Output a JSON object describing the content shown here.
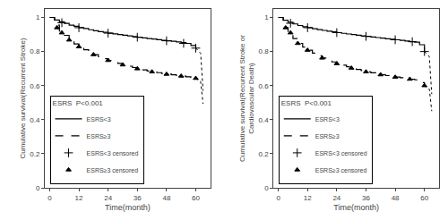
{
  "chart_data": [
    {
      "type": "line",
      "x_label": "Time(month)",
      "y_label": "Cumulative survival(Recurrent Stroke)",
      "legend_title": "ESRS  P<0.001",
      "legend": "lower left",
      "grid": false,
      "xlim": [
        -2,
        66
      ],
      "ylim": [
        0.0,
        1.05
      ],
      "xticks": [
        0,
        12,
        24,
        36,
        48,
        60
      ],
      "yticks": [
        0.0,
        0.2,
        0.4,
        0.6,
        0.8,
        1.0
      ],
      "series": [
        {
          "name": "ESRS<3",
          "type": "step",
          "color": "#000000",
          "line_style": "solid",
          "x": [
            0,
            2,
            4,
            6,
            8,
            10,
            12,
            14,
            16,
            18,
            20,
            22,
            24,
            26,
            28,
            30,
            32,
            34,
            36,
            38,
            40,
            42,
            44,
            46,
            48,
            50,
            52,
            54,
            56,
            58,
            60
          ],
          "values": [
            1.0,
            0.985,
            0.975,
            0.965,
            0.955,
            0.948,
            0.94,
            0.935,
            0.928,
            0.922,
            0.917,
            0.913,
            0.908,
            0.904,
            0.9,
            0.896,
            0.892,
            0.888,
            0.884,
            0.88,
            0.876,
            0.873,
            0.87,
            0.866,
            0.863,
            0.86,
            0.856,
            0.852,
            0.848,
            0.835,
            0.82
          ]
        },
        {
          "name": "ESRS≥3",
          "type": "step",
          "color": "#000000",
          "line_style": "dashed",
          "x": [
            0,
            2,
            4,
            6,
            8,
            10,
            12,
            14,
            16,
            18,
            20,
            22,
            24,
            26,
            28,
            30,
            32,
            34,
            36,
            38,
            40,
            42,
            44,
            46,
            48,
            50,
            52,
            54,
            56,
            58,
            60
          ],
          "values": [
            1.0,
            0.955,
            0.92,
            0.895,
            0.868,
            0.845,
            0.828,
            0.81,
            0.796,
            0.782,
            0.77,
            0.758,
            0.748,
            0.738,
            0.73,
            0.722,
            0.714,
            0.706,
            0.699,
            0.692,
            0.686,
            0.681,
            0.676,
            0.671,
            0.667,
            0.663,
            0.659,
            0.656,
            0.652,
            0.648,
            0.643
          ]
        },
        {
          "type": "line",
          "color": "#000000",
          "line_style": "dotted",
          "x": [
            60,
            62,
            63
          ],
          "values": [
            0.82,
            0.79,
            0.57
          ]
        },
        {
          "type": "line",
          "color": "#000000",
          "line_style": "dotted",
          "x": [
            60,
            62,
            63
          ],
          "values": [
            0.643,
            0.623,
            0.493
          ]
        },
        {
          "name": "ESRS<3 censored",
          "type": "scatter",
          "color": "#000000",
          "marker": "plus",
          "x": [
            5,
            12,
            24,
            36,
            48,
            55,
            60
          ],
          "values": [
            0.969,
            0.94,
            0.908,
            0.884,
            0.863,
            0.848,
            0.82
          ]
        },
        {
          "name": "ESRS≥3 censored",
          "type": "scatter",
          "color": "#000000",
          "marker": "triangle",
          "x": [
            3,
            5,
            8,
            12,
            18,
            24,
            30,
            36,
            42,
            48,
            54,
            60
          ],
          "values": [
            0.94,
            0.91,
            0.868,
            0.828,
            0.782,
            0.748,
            0.722,
            0.699,
            0.681,
            0.667,
            0.656,
            0.643
          ]
        }
      ]
    },
    {
      "type": "line",
      "x_label": "Time(month)",
      "y_label": "Cumulative survival(Recurrent Stroke or\nCardiovascular Death)",
      "legend_title": "ESRS  P<0.001",
      "legend": "lower left",
      "grid": false,
      "xlim": [
        -2,
        66
      ],
      "ylim": [
        0.0,
        1.05
      ],
      "xticks": [
        0,
        12,
        24,
        36,
        48,
        60
      ],
      "yticks": [
        0.0,
        0.2,
        0.4,
        0.6,
        0.8,
        1.0
      ],
      "series": [
        {
          "name": "ESRS<3",
          "type": "step",
          "color": "#000000",
          "line_style": "solid",
          "x": [
            0,
            2,
            4,
            6,
            8,
            10,
            12,
            14,
            16,
            18,
            20,
            22,
            24,
            26,
            28,
            30,
            32,
            34,
            36,
            38,
            40,
            42,
            44,
            46,
            48,
            50,
            52,
            54,
            56,
            58,
            60
          ],
          "values": [
            1.0,
            0.984,
            0.972,
            0.962,
            0.953,
            0.946,
            0.94,
            0.934,
            0.929,
            0.924,
            0.919,
            0.915,
            0.911,
            0.907,
            0.903,
            0.9,
            0.896,
            0.892,
            0.889,
            0.885,
            0.882,
            0.879,
            0.875,
            0.872,
            0.869,
            0.866,
            0.862,
            0.858,
            0.855,
            0.84,
            0.8
          ]
        },
        {
          "name": "ESRS≥3",
          "type": "step",
          "color": "#000000",
          "line_style": "dashed",
          "x": [
            0,
            2,
            4,
            6,
            8,
            10,
            12,
            14,
            16,
            18,
            20,
            22,
            24,
            26,
            28,
            30,
            32,
            34,
            36,
            38,
            40,
            42,
            44,
            46,
            48,
            50,
            52,
            54,
            56,
            58,
            60
          ],
          "values": [
            1.0,
            0.94,
            0.905,
            0.876,
            0.848,
            0.826,
            0.808,
            0.791,
            0.775,
            0.762,
            0.75,
            0.739,
            0.729,
            0.72,
            0.711,
            0.703,
            0.695,
            0.688,
            0.681,
            0.675,
            0.669,
            0.664,
            0.659,
            0.654,
            0.65,
            0.646,
            0.642,
            0.638,
            0.634,
            0.618,
            0.6
          ]
        },
        {
          "type": "line",
          "color": "#000000",
          "line_style": "dotted",
          "x": [
            60,
            62,
            63
          ],
          "values": [
            0.8,
            0.77,
            0.55
          ]
        },
        {
          "type": "line",
          "color": "#000000",
          "line_style": "dotted",
          "x": [
            60,
            62,
            63
          ],
          "values": [
            0.6,
            0.58,
            0.45
          ]
        },
        {
          "name": "ESRS<3 censored",
          "type": "scatter",
          "color": "#000000",
          "marker": "plus",
          "x": [
            5,
            12,
            24,
            36,
            48,
            55,
            60
          ],
          "values": [
            0.966,
            0.94,
            0.911,
            0.889,
            0.869,
            0.858,
            0.8
          ]
        },
        {
          "name": "ESRS≥3 censored",
          "type": "scatter",
          "color": "#000000",
          "marker": "triangle",
          "x": [
            3,
            5,
            8,
            12,
            18,
            24,
            30,
            36,
            42,
            48,
            54,
            60
          ],
          "values": [
            0.94,
            0.91,
            0.848,
            0.808,
            0.762,
            0.729,
            0.703,
            0.681,
            0.664,
            0.65,
            0.638,
            0.6
          ]
        }
      ]
    }
  ]
}
